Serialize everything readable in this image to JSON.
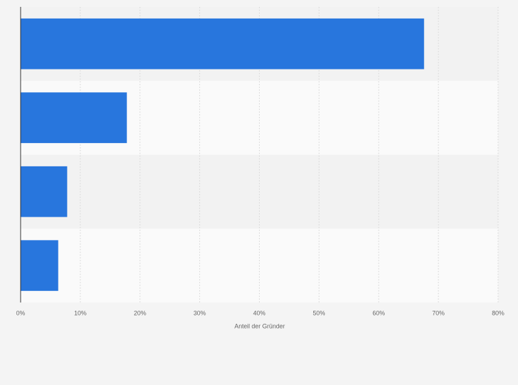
{
  "chart_data": {
    "type": "bar",
    "orientation": "horizontal",
    "categories": [
      null,
      null,
      null,
      null
    ],
    "values": [
      67.6,
      17.8,
      7.8,
      6.3
    ],
    "color": "#2876dd",
    "xlabel": "Anteil der Gründer",
    "xlim": [
      0,
      80
    ],
    "xticks": [
      {
        "value": 0,
        "label": "0%"
      },
      {
        "value": 10,
        "label": "10%"
      },
      {
        "value": 20,
        "label": "20%"
      },
      {
        "value": 30,
        "label": "30%"
      },
      {
        "value": 40,
        "label": "40%"
      },
      {
        "value": 50,
        "label": "50%"
      },
      {
        "value": 60,
        "label": "60%"
      },
      {
        "value": 70,
        "label": "70%"
      },
      {
        "value": 80,
        "label": "80%"
      }
    ],
    "grid": true
  }
}
